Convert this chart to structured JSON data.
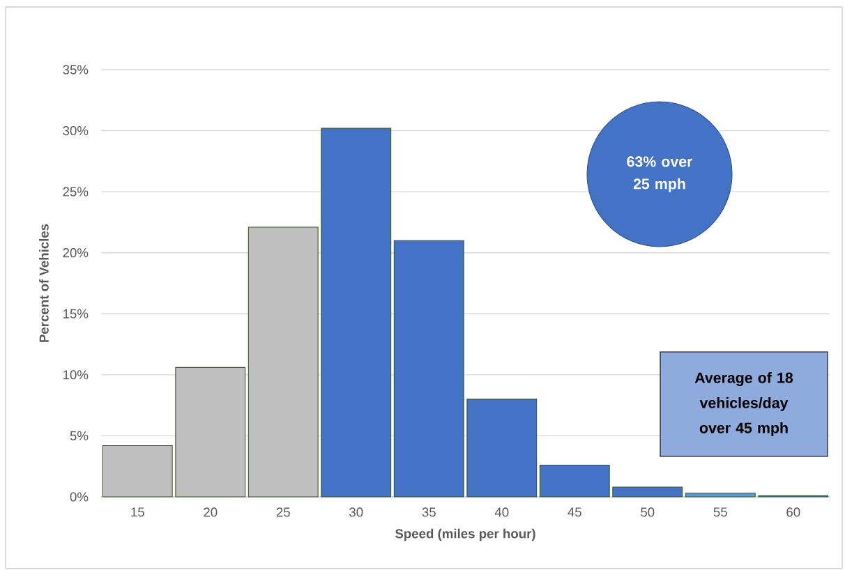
{
  "chart_data": {
    "type": "bar",
    "xlabel": "Speed (miles per hour)",
    "ylabel": "Percent of Vehicles",
    "categories": [
      "15",
      "20",
      "25",
      "30",
      "35",
      "40",
      "45",
      "50",
      "55",
      "60"
    ],
    "values": [
      4.2,
      10.6,
      22.1,
      30.2,
      21.0,
      8.0,
      2.6,
      0.8,
      0.3,
      0.1
    ],
    "colors": [
      "#bfbfbf",
      "#bfbfbf",
      "#bfbfbf",
      "#4472c4",
      "#4472c4",
      "#4472c4",
      "#4472c4",
      "#4472c4",
      "#5b9bd5",
      "#4472c4"
    ],
    "ylim": [
      0,
      35
    ],
    "yticks": [
      {
        "value": 0,
        "label": "0%"
      },
      {
        "value": 5,
        "label": "5%"
      },
      {
        "value": 10,
        "label": "10%"
      },
      {
        "value": 15,
        "label": "15%"
      },
      {
        "value": 20,
        "label": "20%"
      },
      {
        "value": 25,
        "label": "25%"
      },
      {
        "value": 30,
        "label": "30%"
      },
      {
        "value": 35,
        "label": "35%"
      }
    ],
    "grid": "y",
    "annotations": [
      "63% over 25 mph",
      "Average of 18 vehicles/day over 45 mph"
    ]
  }
}
